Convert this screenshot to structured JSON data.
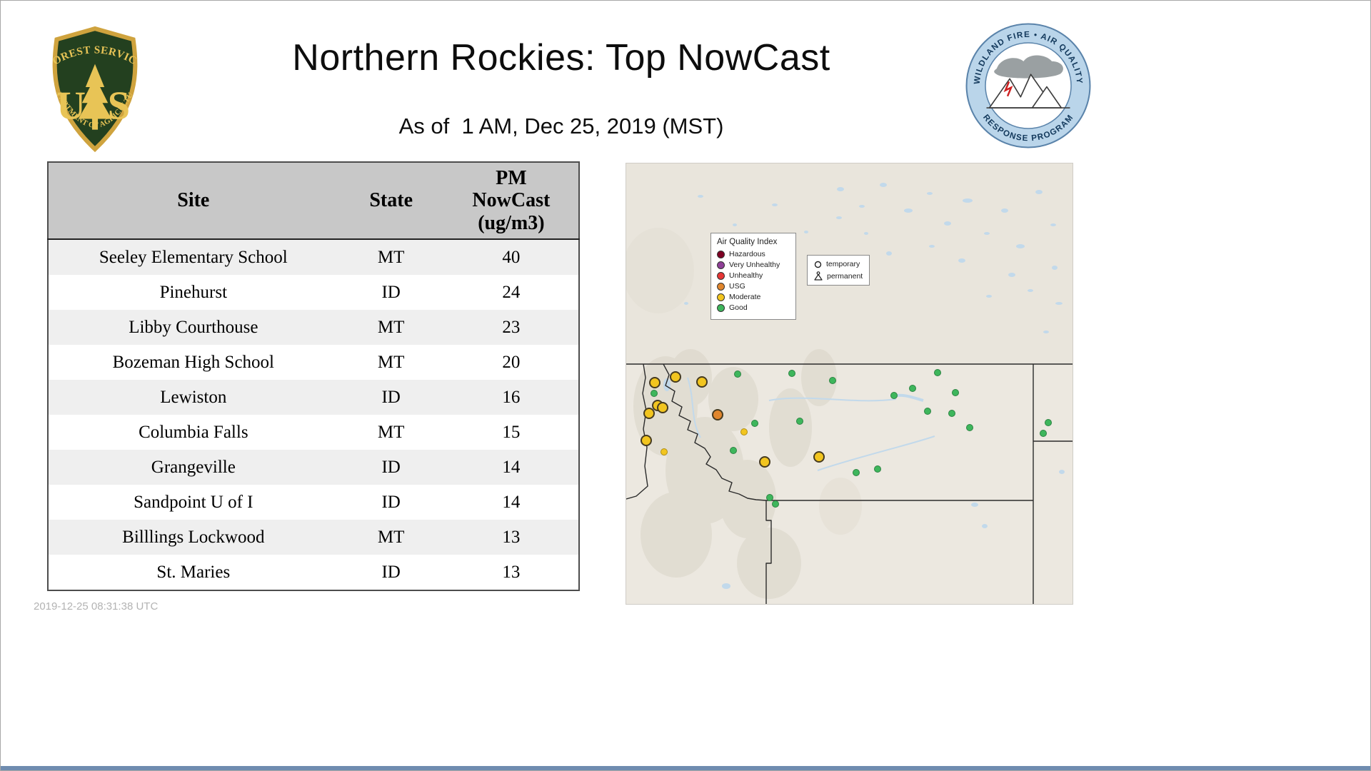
{
  "header": {
    "title": "Northern Rockies: Top NowCast",
    "subtitle": "As of  1 AM, Dec 25, 2019 (MST)"
  },
  "footer": {
    "timestamp": "2019-12-25 08:31:38 UTC"
  },
  "fs_logo": {
    "arc_top": "FOREST SERVICE",
    "letter_left": "U",
    "letter_right": "S",
    "arc_bottom": "DEPARTMENT OF AGRICULTURE"
  },
  "aqrp_logo": {
    "arc_top": "WILDLAND FIRE • AIR QUALITY",
    "arc_bottom": "RESPONSE PROGRAM"
  },
  "table": {
    "columns": [
      "Site",
      "State",
      "PM\nNowCast\n(ug/m3)"
    ],
    "rows": [
      [
        "Seeley Elementary School",
        "MT",
        "40"
      ],
      [
        "Pinehurst",
        "ID",
        "24"
      ],
      [
        "Libby Courthouse",
        "MT",
        "23"
      ],
      [
        "Bozeman High School",
        "MT",
        "20"
      ],
      [
        "Lewiston",
        "ID",
        "16"
      ],
      [
        "Columbia Falls",
        "MT",
        "15"
      ],
      [
        "Grangeville",
        "ID",
        "14"
      ],
      [
        "Sandpoint U of I",
        "ID",
        "14"
      ],
      [
        "Billlings Lockwood",
        "MT",
        "13"
      ],
      [
        "St. Maries",
        "ID",
        "13"
      ]
    ]
  },
  "map": {
    "aqi_colors": {
      "hazardous": "#7e0023",
      "very_unhealthy": "#8f3f97",
      "unhealthy": "#e63535",
      "usg": "#e0862d",
      "moderate": "#f2c51f",
      "good": "#3eb65c"
    },
    "legend": {
      "title": "Air Quality Index",
      "items": [
        {
          "label": "Hazardous",
          "key": "hazardous"
        },
        {
          "label": "Very Unhealthy",
          "key": "very_unhealthy"
        },
        {
          "label": "Unhealthy",
          "key": "unhealthy"
        },
        {
          "label": "USG",
          "key": "usg"
        },
        {
          "label": "Moderate",
          "key": "moderate"
        },
        {
          "label": "Good",
          "key": "good"
        }
      ]
    },
    "marker_key": {
      "temporary": "temporary",
      "permanent": "permanent"
    },
    "markers": [
      {
        "x": 6.4,
        "y": 49.8,
        "aqi": "moderate",
        "size": "large"
      },
      {
        "x": 11.0,
        "y": 48.5,
        "aqi": "moderate",
        "size": "large"
      },
      {
        "x": 17.0,
        "y": 49.6,
        "aqi": "moderate",
        "size": "large"
      },
      {
        "x": 7.0,
        "y": 54.9,
        "aqi": "moderate",
        "size": "large"
      },
      {
        "x": 5.1,
        "y": 56.8,
        "aqi": "moderate",
        "size": "large"
      },
      {
        "x": 8.2,
        "y": 55.4,
        "aqi": "moderate",
        "size": "large"
      },
      {
        "x": 4.5,
        "y": 62.9,
        "aqi": "moderate",
        "size": "large"
      },
      {
        "x": 31.0,
        "y": 67.7,
        "aqi": "moderate",
        "size": "large"
      },
      {
        "x": 43.2,
        "y": 66.6,
        "aqi": "moderate",
        "size": "large"
      },
      {
        "x": 20.5,
        "y": 57.1,
        "aqi": "usg",
        "size": "large"
      },
      {
        "x": 26.4,
        "y": 60.9,
        "aqi": "moderate",
        "size": "small"
      },
      {
        "x": 8.5,
        "y": 65.5,
        "aqi": "moderate",
        "size": "small"
      },
      {
        "x": 25.0,
        "y": 47.8,
        "aqi": "good",
        "size": "small"
      },
      {
        "x": 37.1,
        "y": 47.6,
        "aqi": "good",
        "size": "small"
      },
      {
        "x": 46.2,
        "y": 49.3,
        "aqi": "good",
        "size": "small"
      },
      {
        "x": 60.0,
        "y": 52.7,
        "aqi": "good",
        "size": "small"
      },
      {
        "x": 64.2,
        "y": 51.1,
        "aqi": "good",
        "size": "small"
      },
      {
        "x": 69.8,
        "y": 47.5,
        "aqi": "good",
        "size": "small"
      },
      {
        "x": 73.8,
        "y": 52.0,
        "aqi": "good",
        "size": "small"
      },
      {
        "x": 67.5,
        "y": 56.2,
        "aqi": "good",
        "size": "small"
      },
      {
        "x": 73.0,
        "y": 56.7,
        "aqi": "good",
        "size": "small"
      },
      {
        "x": 77.0,
        "y": 60.0,
        "aqi": "good",
        "size": "small"
      },
      {
        "x": 94.6,
        "y": 58.8,
        "aqi": "good",
        "size": "small"
      },
      {
        "x": 93.4,
        "y": 61.2,
        "aqi": "good",
        "size": "small"
      },
      {
        "x": 38.9,
        "y": 58.5,
        "aqi": "good",
        "size": "small"
      },
      {
        "x": 28.8,
        "y": 59.0,
        "aqi": "good",
        "size": "small"
      },
      {
        "x": 24.0,
        "y": 65.2,
        "aqi": "good",
        "size": "small"
      },
      {
        "x": 51.5,
        "y": 70.2,
        "aqi": "good",
        "size": "small"
      },
      {
        "x": 56.3,
        "y": 69.4,
        "aqi": "good",
        "size": "small"
      },
      {
        "x": 32.2,
        "y": 75.9,
        "aqi": "good",
        "size": "small"
      },
      {
        "x": 33.4,
        "y": 77.3,
        "aqi": "good",
        "size": "small"
      },
      {
        "x": 6.2,
        "y": 52.2,
        "aqi": "good",
        "size": "small"
      }
    ]
  }
}
